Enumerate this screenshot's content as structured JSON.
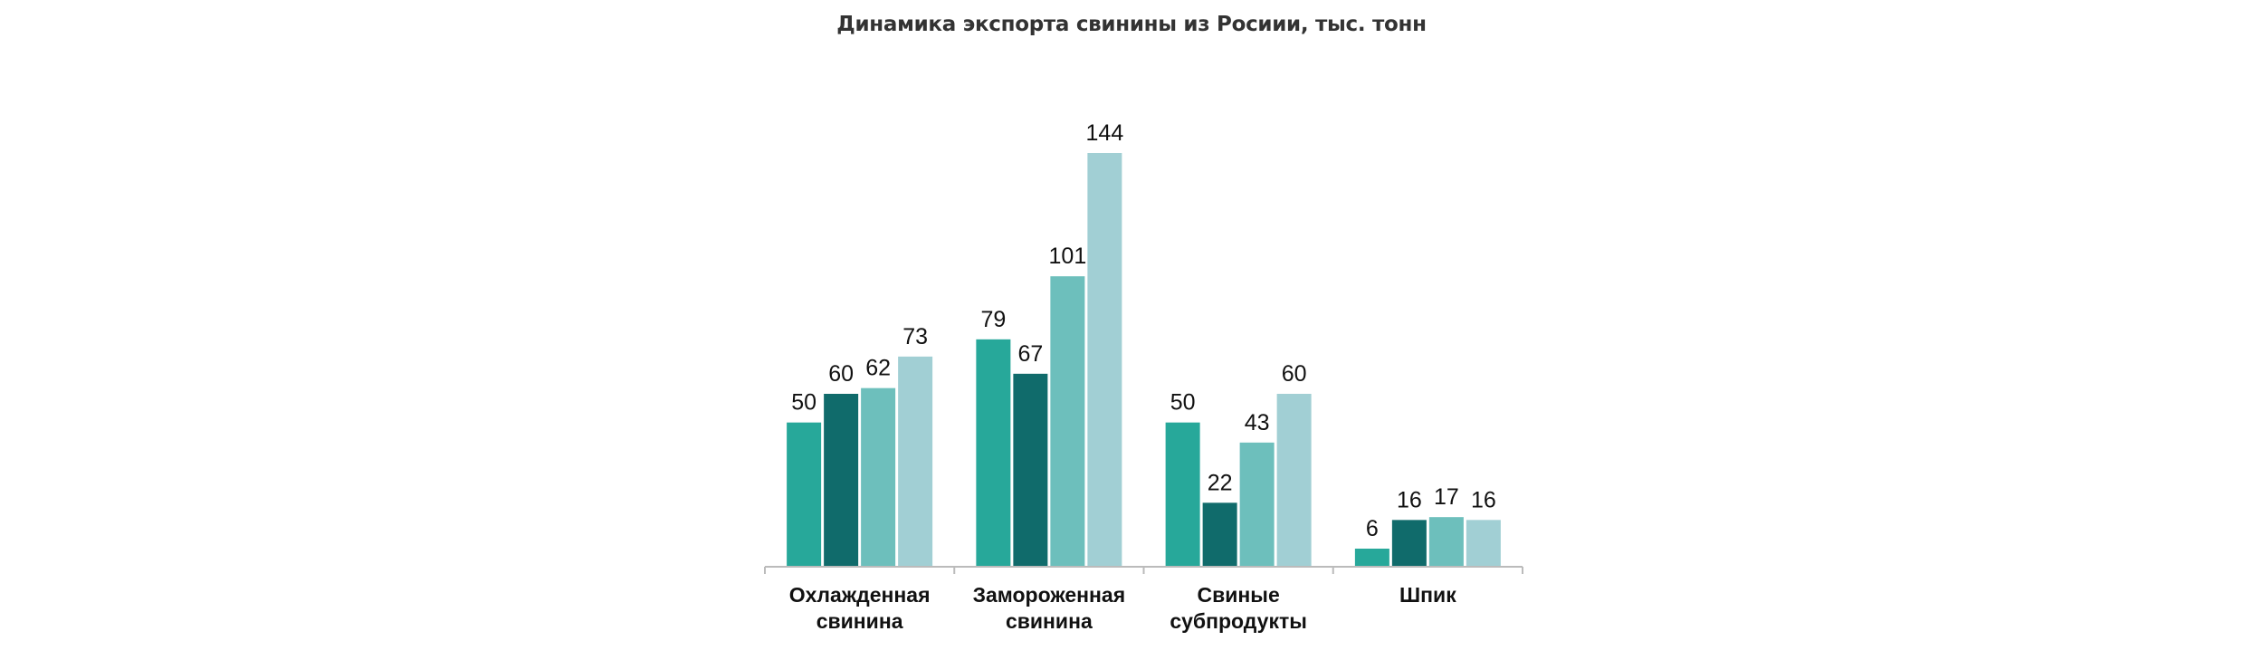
{
  "chart_data": {
    "type": "bar",
    "title": "Динамика экспорта свинины из Росиии, тыс. тонн",
    "categories": [
      [
        "Охлажденная",
        "свинина"
      ],
      [
        "Замороженная",
        "свинина"
      ],
      [
        "Свиные",
        "субпродукты"
      ],
      [
        "Шпик"
      ]
    ],
    "series": [
      {
        "name": "series-1",
        "color": "#27a89a",
        "values": [
          50,
          79,
          50,
          6
        ]
      },
      {
        "name": "series-2",
        "color": "#106b6b",
        "values": [
          60,
          67,
          22,
          16
        ]
      },
      {
        "name": "series-3",
        "color": "#6dbfbc",
        "values": [
          62,
          101,
          43,
          17
        ]
      },
      {
        "name": "series-4",
        "color": "#a1cfd4",
        "values": [
          73,
          144,
          60,
          16
        ]
      }
    ],
    "xlabel": "",
    "ylabel": "",
    "ylim": [
      0,
      144
    ],
    "grid": false,
    "legend": "none"
  }
}
